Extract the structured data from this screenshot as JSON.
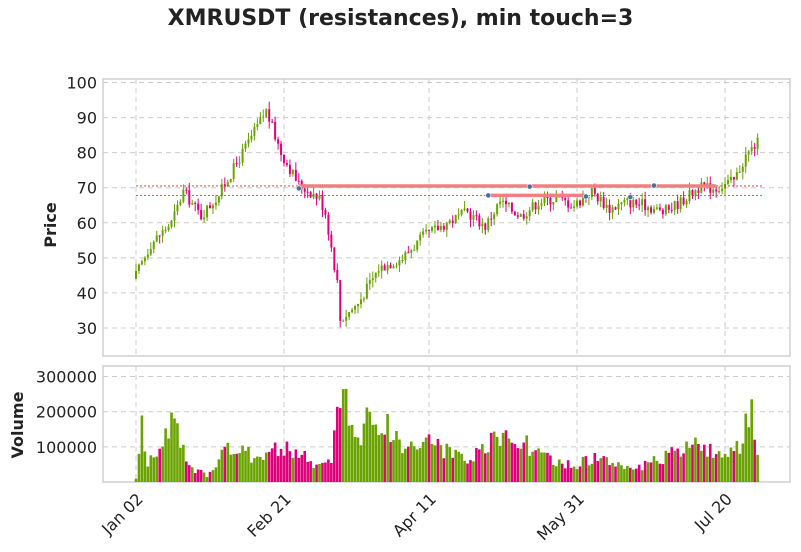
{
  "title": "XMRUSDT (resistances), min touch=3",
  "colors": {
    "up": "#6aa300",
    "down": "#e0007a",
    "resistance": "#f08080",
    "touch": "#4a6fa5",
    "grid": "#cccccc"
  },
  "chart_data": {
    "type": "candlestick",
    "title": "XMRUSDT (resistances), min touch=3",
    "price_panel": {
      "ylabel": "Price",
      "ylim": [
        22,
        101
      ],
      "yticks": [
        30,
        40,
        50,
        60,
        70,
        80,
        90,
        100
      ]
    },
    "volume_panel": {
      "ylabel": "Volume",
      "ylim": [
        0,
        330000
      ],
      "yticks": [
        100000,
        200000,
        300000
      ]
    },
    "x_ticks": [
      {
        "label": "Jan 02",
        "index": 0
      },
      {
        "label": "Feb 21",
        "index": 50
      },
      {
        "label": "Apr 11",
        "index": 99
      },
      {
        "label": "May 31",
        "index": 149
      },
      {
        "label": "Jul 20",
        "index": 199
      }
    ],
    "count": 211,
    "close_anchors": [
      [
        0,
        45
      ],
      [
        5,
        54
      ],
      [
        12,
        60
      ],
      [
        16,
        69
      ],
      [
        22,
        62
      ],
      [
        28,
        68
      ],
      [
        36,
        80
      ],
      [
        44,
        92
      ],
      [
        49,
        80
      ],
      [
        55,
        71
      ],
      [
        62,
        67
      ],
      [
        64,
        63
      ],
      [
        70,
        33
      ],
      [
        75,
        37
      ],
      [
        82,
        47
      ],
      [
        90,
        50
      ],
      [
        97,
        56
      ],
      [
        105,
        60
      ],
      [
        112,
        63
      ],
      [
        118,
        59
      ],
      [
        123,
        66
      ],
      [
        130,
        62
      ],
      [
        136,
        66
      ],
      [
        142,
        67
      ],
      [
        148,
        65
      ],
      [
        154,
        69
      ],
      [
        160,
        64
      ],
      [
        166,
        66
      ],
      [
        172,
        65
      ],
      [
        178,
        63
      ],
      [
        184,
        66
      ],
      [
        190,
        70
      ],
      [
        196,
        70
      ],
      [
        202,
        72
      ],
      [
        206,
        79
      ],
      [
        210,
        83
      ]
    ],
    "volume_anchors": [
      [
        0,
        10000
      ],
      [
        2,
        150000
      ],
      [
        4,
        50000
      ],
      [
        10,
        130000
      ],
      [
        12,
        175000
      ],
      [
        18,
        40000
      ],
      [
        24,
        20000
      ],
      [
        30,
        95000
      ],
      [
        40,
        75000
      ],
      [
        48,
        95000
      ],
      [
        56,
        80000
      ],
      [
        60,
        45000
      ],
      [
        66,
        60000
      ],
      [
        70,
        300000
      ],
      [
        74,
        120000
      ],
      [
        80,
        190000
      ],
      [
        86,
        150000
      ],
      [
        90,
        100000
      ],
      [
        100,
        120000
      ],
      [
        106,
        80000
      ],
      [
        112,
        55000
      ],
      [
        120,
        110000
      ],
      [
        128,
        140000
      ],
      [
        134,
        90000
      ],
      [
        140,
        60000
      ],
      [
        148,
        45000
      ],
      [
        154,
        70000
      ],
      [
        160,
        55000
      ],
      [
        170,
        40000
      ],
      [
        176,
        60000
      ],
      [
        184,
        90000
      ],
      [
        192,
        110000
      ],
      [
        198,
        60000
      ],
      [
        204,
        100000
      ],
      [
        208,
        200000
      ],
      [
        210,
        60000
      ]
    ],
    "resistances": [
      {
        "level": 70.5,
        "from": 55,
        "to": 196
      },
      {
        "level": 67.8,
        "from": 119,
        "to": 152
      }
    ],
    "touch_points": [
      {
        "index": 55,
        "price": 69.8
      },
      {
        "index": 119,
        "price": 67.8
      },
      {
        "index": 133,
        "price": 70.3
      },
      {
        "index": 152,
        "price": 67.5
      },
      {
        "index": 167,
        "price": 67.3
      },
      {
        "index": 175,
        "price": 70.6
      }
    ]
  }
}
